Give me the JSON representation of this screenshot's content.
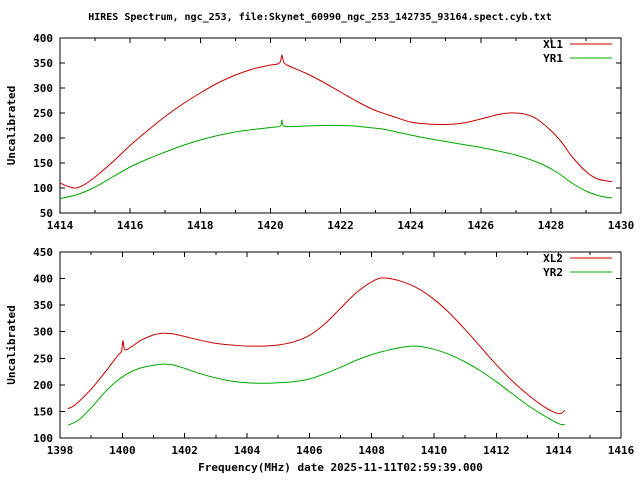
{
  "figure": {
    "title": "HIRES Spectrum, ngc_253, file:Skynet_60990_ngc_253_142735_93164.spect.cyb.txt",
    "background": "#ffffff",
    "axis_color": "#000000"
  },
  "chart_data": [
    {
      "type": "line",
      "title": "",
      "xlabel": "",
      "ylabel": "Uncalibrated",
      "xlim": [
        1414,
        1430
      ],
      "ylim": [
        50,
        400
      ],
      "xticks": [
        1414,
        1416,
        1418,
        1420,
        1422,
        1424,
        1426,
        1428,
        1430
      ],
      "yticks": [
        50,
        100,
        150,
        200,
        250,
        300,
        350,
        400
      ],
      "x_minor_step": 1,
      "grid": false,
      "legend_position": "top-right",
      "series": [
        {
          "name": "XL1",
          "color": "#c80000",
          "x": [
            1414.0,
            1414.2,
            1414.45,
            1414.7,
            1415.0,
            1415.5,
            1416.0,
            1416.5,
            1417.0,
            1417.5,
            1418.0,
            1418.5,
            1419.0,
            1419.5,
            1419.8,
            1420.0,
            1420.2,
            1420.28,
            1420.33,
            1420.38,
            1420.5,
            1421.0,
            1421.5,
            1422.0,
            1422.5,
            1423.0,
            1423.5,
            1424.0,
            1424.5,
            1425.0,
            1425.5,
            1426.0,
            1426.5,
            1426.8,
            1427.0,
            1427.3,
            1427.6,
            1428.0,
            1428.3,
            1428.6,
            1429.0,
            1429.3,
            1429.6,
            1429.75
          ],
          "y": [
            110,
            104,
            100,
            107,
            122,
            152,
            185,
            215,
            243,
            268,
            290,
            310,
            326,
            338,
            343,
            346,
            348,
            352,
            366,
            352,
            345,
            330,
            312,
            292,
            272,
            255,
            243,
            232,
            228,
            227,
            230,
            238,
            247,
            250,
            250,
            247,
            238,
            215,
            192,
            163,
            133,
            119,
            114,
            113
          ]
        },
        {
          "name": "YR1",
          "color": "#00a800",
          "x": [
            1414.0,
            1414.5,
            1415.0,
            1415.5,
            1416.0,
            1416.5,
            1417.0,
            1417.5,
            1418.0,
            1418.5,
            1419.0,
            1419.5,
            1420.0,
            1420.28,
            1420.33,
            1420.38,
            1420.7,
            1421.0,
            1421.5,
            1422.0,
            1422.4,
            1422.8,
            1423.2,
            1423.6,
            1424.0,
            1424.5,
            1425.0,
            1425.5,
            1426.0,
            1426.5,
            1427.0,
            1427.4,
            1427.8,
            1428.2,
            1428.6,
            1429.0,
            1429.4,
            1429.75
          ],
          "y": [
            79,
            87,
            102,
            122,
            142,
            158,
            172,
            185,
            196,
            205,
            212,
            217,
            221,
            224,
            236,
            224,
            223,
            224,
            225,
            225,
            224,
            221,
            218,
            212,
            206,
            199,
            193,
            187,
            181,
            174,
            166,
            157,
            146,
            130,
            110,
            94,
            84,
            80
          ]
        }
      ]
    },
    {
      "type": "line",
      "title": "",
      "xlabel": "Frequency(MHz) date 2025-11-11T02:59:39.000",
      "ylabel": "Uncalibrated",
      "xlim": [
        1398,
        1416
      ],
      "ylim": [
        100,
        450
      ],
      "xticks": [
        1398,
        1400,
        1402,
        1404,
        1406,
        1408,
        1410,
        1412,
        1414,
        1416
      ],
      "yticks": [
        100,
        150,
        200,
        250,
        300,
        350,
        400,
        450
      ],
      "x_minor_step": 1,
      "grid": false,
      "legend_position": "top-right",
      "series": [
        {
          "name": "XL2",
          "color": "#c80000",
          "x": [
            1398.25,
            1398.5,
            1399.0,
            1399.5,
            1399.85,
            1399.97,
            1400.02,
            1400.08,
            1400.3,
            1400.6,
            1401.0,
            1401.3,
            1401.6,
            1402.0,
            1402.5,
            1403.0,
            1403.5,
            1404.0,
            1404.5,
            1405.0,
            1405.5,
            1406.0,
            1406.5,
            1407.0,
            1407.5,
            1408.0,
            1408.3,
            1408.6,
            1409.0,
            1409.5,
            1410.0,
            1410.5,
            1411.0,
            1411.5,
            1412.0,
            1412.5,
            1413.0,
            1413.5,
            1413.8,
            1414.05,
            1414.2
          ],
          "y": [
            155,
            163,
            192,
            228,
            255,
            263,
            283,
            266,
            272,
            284,
            294,
            297,
            296,
            291,
            284,
            278,
            275,
            273,
            273,
            275,
            281,
            293,
            315,
            344,
            373,
            394,
            401,
            400,
            394,
            381,
            361,
            335,
            304,
            271,
            238,
            208,
            182,
            160,
            150,
            146,
            152
          ]
        },
        {
          "name": "YR2",
          "color": "#00a800",
          "x": [
            1398.25,
            1398.6,
            1399.0,
            1399.5,
            1400.0,
            1400.5,
            1401.0,
            1401.3,
            1401.6,
            1402.0,
            1402.5,
            1403.0,
            1403.5,
            1404.0,
            1404.5,
            1405.0,
            1405.5,
            1406.0,
            1406.5,
            1407.0,
            1407.5,
            1408.0,
            1408.5,
            1409.0,
            1409.3,
            1409.6,
            1410.0,
            1410.5,
            1411.0,
            1411.5,
            1412.0,
            1412.5,
            1413.0,
            1413.5,
            1414.0,
            1414.2
          ],
          "y": [
            124,
            134,
            157,
            190,
            215,
            230,
            237,
            239,
            238,
            231,
            221,
            213,
            207,
            204,
            203,
            204,
            206,
            211,
            221,
            233,
            246,
            257,
            265,
            271,
            273,
            272,
            267,
            257,
            243,
            226,
            206,
            184,
            162,
            143,
            127,
            125
          ]
        }
      ]
    }
  ]
}
